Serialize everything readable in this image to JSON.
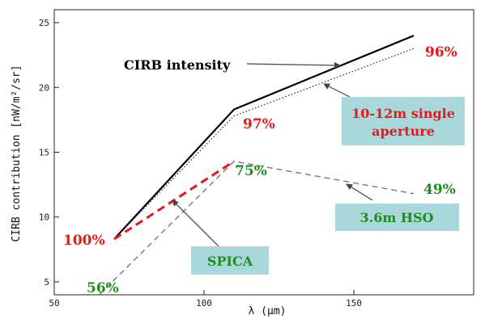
{
  "chart_data": {
    "type": "line",
    "xlabel": "λ (μm)",
    "ylabel": "CIRB contribution  [nW/m²/sr]",
    "xlim": [
      50,
      190
    ],
    "ylim": [
      4,
      26
    ],
    "xticks": [
      50,
      100,
      150
    ],
    "yticks": [
      5,
      10,
      15,
      20,
      25
    ],
    "series": [
      {
        "name": "CIRB intensity",
        "color": "#000000",
        "style": "solid",
        "x": [
          70,
          110,
          170
        ],
        "y": [
          8.3,
          18.3,
          24.0
        ]
      },
      {
        "name": "10-12m single aperture",
        "color": "#333333",
        "style": "dotted",
        "x": [
          70,
          110,
          170
        ],
        "y": [
          8.3,
          17.8,
          23.0
        ]
      },
      {
        "name": "SPICA",
        "color": "#e81818",
        "style": "dashed",
        "x": [
          70,
          110
        ],
        "y": [
          8.3,
          14.3
        ]
      },
      {
        "name": "3.6m HSO",
        "color": "#777777",
        "style": "dashed",
        "x": [
          65,
          110,
          170
        ],
        "y": [
          4.0,
          14.3,
          11.8
        ]
      }
    ],
    "percent_labels": [
      {
        "text": "100%",
        "color": "#e81818"
      },
      {
        "text": "97%",
        "color": "#e81818"
      },
      {
        "text": "96%",
        "color": "#e81818"
      },
      {
        "text": "56%",
        "color": "#1e8c1e"
      },
      {
        "text": "75%",
        "color": "#1e8c1e"
      },
      {
        "text": "49%",
        "color": "#1e8c1e"
      }
    ],
    "annotations": [
      {
        "text": "CIRB intensity",
        "color": "#000000",
        "boxed": false
      },
      {
        "text_lines": [
          "10-12m single",
          "aperture"
        ],
        "color": "#e81818",
        "boxed": true
      },
      {
        "text": "3.6m HSO",
        "color": "#1e8c1e",
        "boxed": true
      },
      {
        "text": "SPICA",
        "color": "#1e8c1e",
        "boxed": true
      }
    ],
    "box_color": "#a8d8dc",
    "grid": false
  }
}
